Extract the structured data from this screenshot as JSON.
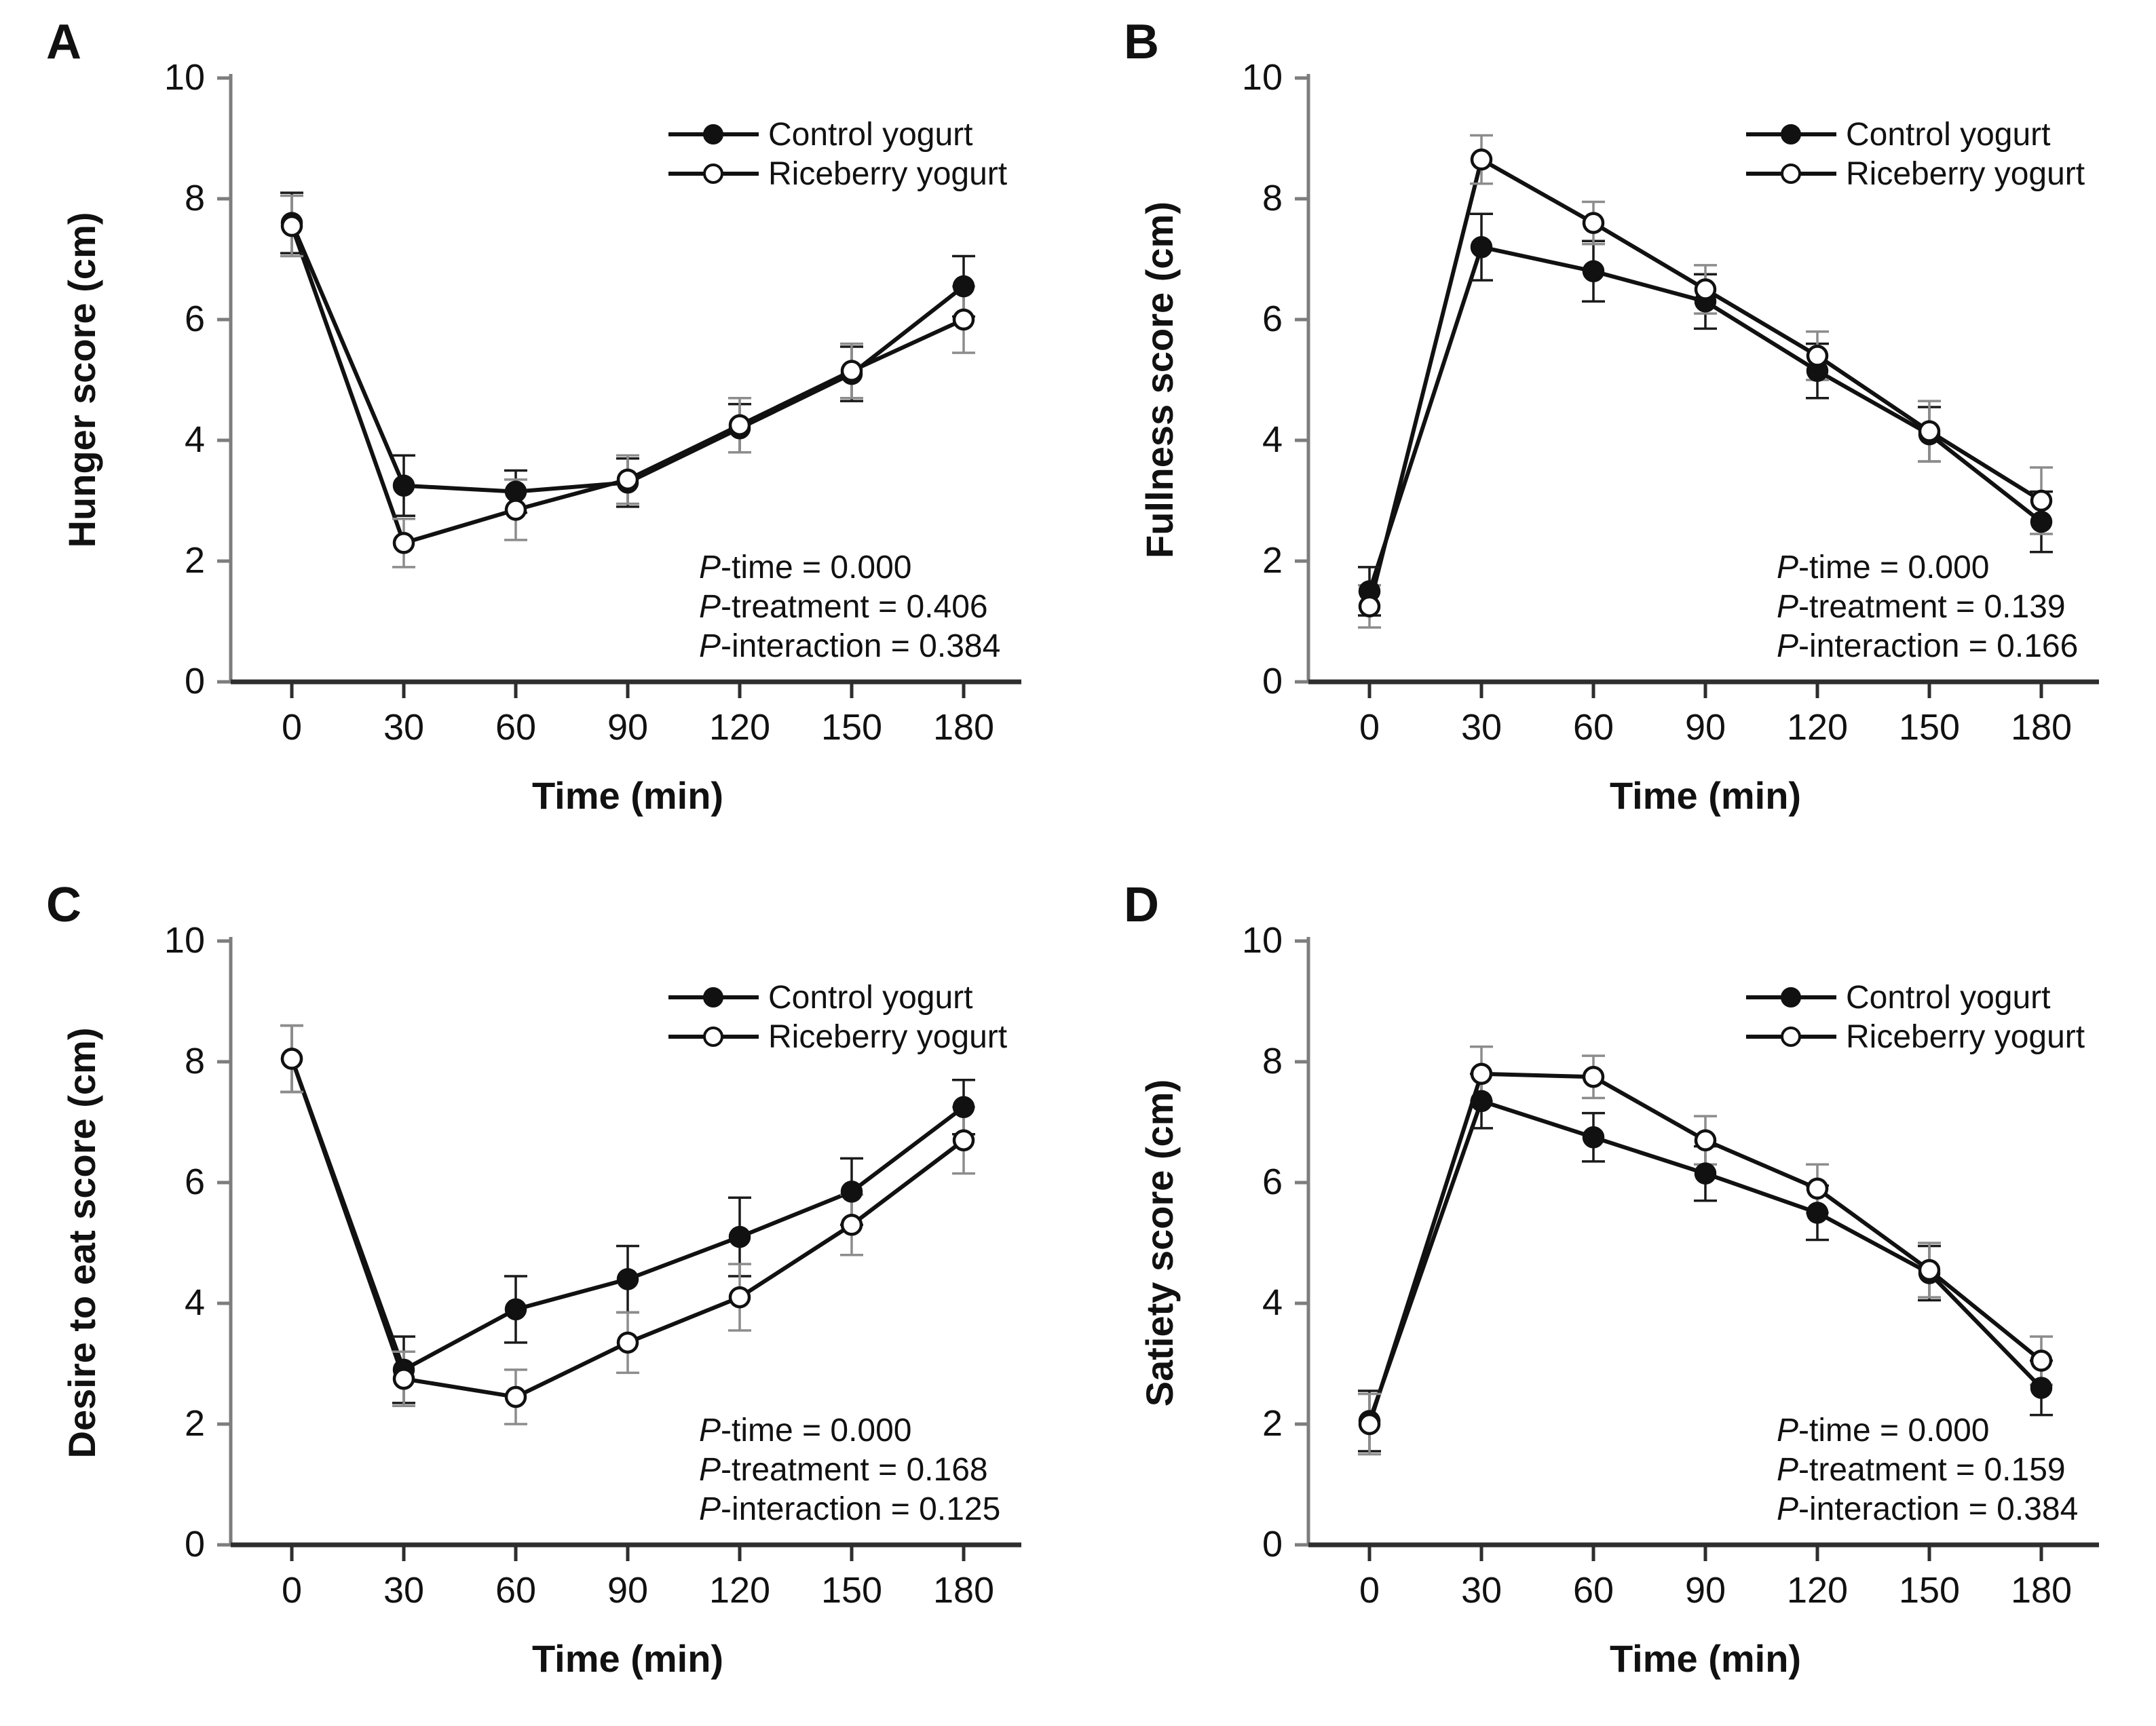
{
  "page": {
    "background": "#ffffff"
  },
  "colors": {
    "series_line": "#111111",
    "control_marker_fill": "#111111",
    "riceberry_marker_fill": "#ffffff",
    "marker_stroke": "#111111",
    "control_error_bar": "#1a1a1a",
    "riceberry_error_bar": "#8c8c8c",
    "y_axis": "#7d7d7d",
    "x_axis": "#2e2e2e",
    "text": "#111111"
  },
  "legend": {
    "items": [
      {
        "label": "Control yogurt",
        "marker": "filled-circle-icon"
      },
      {
        "label": "Riceberry yogurt",
        "marker": "open-circle-icon"
      }
    ],
    "position": "top-right"
  },
  "chart_data": [
    {
      "type": "line",
      "panel_label": "A",
      "title": "",
      "ylabel": "Hunger score (cm)",
      "xlabel": "Time (min)",
      "x": [
        0,
        30,
        60,
        90,
        120,
        150,
        180
      ],
      "ylim": [
        0,
        10
      ],
      "yticks": [
        0,
        2,
        4,
        6,
        8,
        10
      ],
      "grid": false,
      "legend_position": "top-right",
      "series": [
        {
          "name": "Control yogurt",
          "marker": "filled-circle",
          "values": [
            7.6,
            3.25,
            3.15,
            3.3,
            4.2,
            5.1,
            6.55
          ],
          "errors": [
            0.5,
            0.5,
            0.35,
            0.4,
            0.4,
            0.45,
            0.5
          ]
        },
        {
          "name": "Riceberry yogurt",
          "marker": "open-circle",
          "values": [
            7.55,
            2.3,
            2.85,
            3.35,
            4.25,
            5.15,
            6.0
          ],
          "errors": [
            0.5,
            0.4,
            0.5,
            0.4,
            0.45,
            0.45,
            0.55
          ]
        }
      ],
      "stats": [
        {
          "italic": "P",
          "rest": "-time = 0.000"
        },
        {
          "italic": "P",
          "rest": "-treatment = 0.406"
        },
        {
          "italic": "P",
          "rest": "-interaction = 0.384"
        }
      ]
    },
    {
      "type": "line",
      "panel_label": "B",
      "title": "",
      "ylabel": "Fullness score (cm)",
      "xlabel": "Time (min)",
      "x": [
        0,
        30,
        60,
        90,
        120,
        150,
        180
      ],
      "ylim": [
        0,
        10
      ],
      "yticks": [
        0,
        2,
        4,
        6,
        8,
        10
      ],
      "grid": false,
      "legend_position": "top-right",
      "series": [
        {
          "name": "Control yogurt",
          "marker": "filled-circle",
          "values": [
            1.5,
            7.2,
            6.8,
            6.3,
            5.15,
            4.1,
            2.65
          ],
          "errors": [
            0.4,
            0.55,
            0.5,
            0.45,
            0.45,
            0.45,
            0.5
          ]
        },
        {
          "name": "Riceberry yogurt",
          "marker": "open-circle",
          "values": [
            1.25,
            8.65,
            7.6,
            6.5,
            5.4,
            4.15,
            3.0
          ],
          "errors": [
            0.35,
            0.4,
            0.35,
            0.4,
            0.4,
            0.5,
            0.55
          ]
        }
      ],
      "stats": [
        {
          "italic": "P",
          "rest": "-time = 0.000"
        },
        {
          "italic": "P",
          "rest": "-treatment = 0.139"
        },
        {
          "italic": "P",
          "rest": "-interaction = 0.166"
        }
      ]
    },
    {
      "type": "line",
      "panel_label": "C",
      "title": "",
      "ylabel": "Desire to eat score (cm)",
      "xlabel": "Time (min)",
      "x": [
        0,
        30,
        60,
        90,
        120,
        150,
        180
      ],
      "ylim": [
        0,
        10
      ],
      "yticks": [
        0,
        2,
        4,
        6,
        8,
        10
      ],
      "grid": false,
      "legend_position": "top-right",
      "series": [
        {
          "name": "Control yogurt",
          "marker": "filled-circle",
          "values": [
            8.05,
            2.9,
            3.9,
            4.4,
            5.1,
            5.85,
            7.25
          ],
          "errors": [
            0.55,
            0.55,
            0.55,
            0.55,
            0.65,
            0.55,
            0.45
          ]
        },
        {
          "name": "Riceberry yogurt",
          "marker": "open-circle",
          "values": [
            8.05,
            2.75,
            2.45,
            3.35,
            4.1,
            5.3,
            6.7
          ],
          "errors": [
            0.55,
            0.45,
            0.45,
            0.5,
            0.55,
            0.5,
            0.55
          ]
        }
      ],
      "stats": [
        {
          "italic": "P",
          "rest": "-time = 0.000"
        },
        {
          "italic": "P",
          "rest": "-treatment = 0.168"
        },
        {
          "italic": "P",
          "rest": "-interaction = 0.125"
        }
      ]
    },
    {
      "type": "line",
      "panel_label": "D",
      "title": "",
      "ylabel": "Satiety score (cm)",
      "xlabel": "Time (min)",
      "x": [
        0,
        30,
        60,
        90,
        120,
        150,
        180
      ],
      "ylim": [
        0,
        10
      ],
      "yticks": [
        0,
        2,
        4,
        6,
        8,
        10
      ],
      "grid": false,
      "legend_position": "top-right",
      "series": [
        {
          "name": "Control yogurt",
          "marker": "filled-circle",
          "values": [
            2.05,
            7.35,
            6.75,
            6.15,
            5.5,
            4.5,
            2.6
          ],
          "errors": [
            0.5,
            0.45,
            0.4,
            0.45,
            0.45,
            0.45,
            0.45
          ]
        },
        {
          "name": "Riceberry yogurt",
          "marker": "open-circle",
          "values": [
            2.0,
            7.8,
            7.75,
            6.7,
            5.9,
            4.55,
            3.05
          ],
          "errors": [
            0.5,
            0.45,
            0.35,
            0.4,
            0.4,
            0.45,
            0.4
          ]
        }
      ],
      "stats": [
        {
          "italic": "P",
          "rest": "-time = 0.000"
        },
        {
          "italic": "P",
          "rest": "-treatment = 0.159"
        },
        {
          "italic": "P",
          "rest": "-interaction = 0.384"
        }
      ]
    }
  ]
}
